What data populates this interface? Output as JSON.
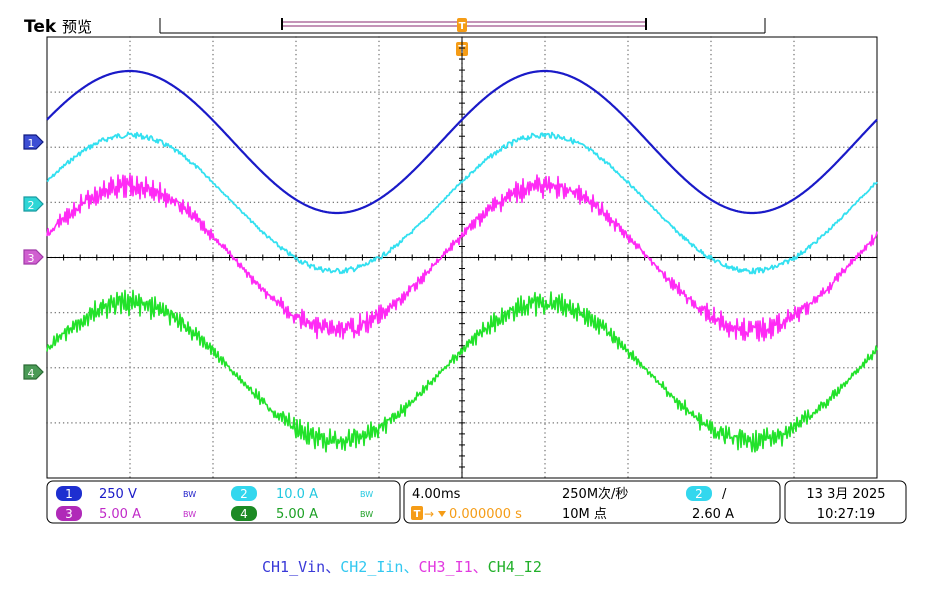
{
  "brand": "Tek",
  "mode": "预览",
  "trigger_marker": "T",
  "channels": [
    {
      "id": "1",
      "label": "1",
      "scale": "250 V",
      "bw": "BW",
      "color": "#1a1ac8",
      "badge": "#1e2fd0"
    },
    {
      "id": "2",
      "label": "2",
      "scale": "10.0 A",
      "bw": "BW",
      "color": "#33e0f0",
      "badge": "#33d7ee"
    },
    {
      "id": "3",
      "label": "3",
      "scale": "5.00 A",
      "bw": "BW",
      "color": "#ff2af5",
      "badge": "#d23ad8"
    },
    {
      "id": "4",
      "label": "4",
      "scale": "5.00 A",
      "bw": "BW",
      "color": "#22e22a",
      "badge": "#22a02a"
    }
  ],
  "horizontal": {
    "timebase": "4.00ms",
    "sample_rate": "250M次/秒",
    "record_length": "10M 点",
    "trigger_position": "0.000000 s"
  },
  "trigger": {
    "source": "2",
    "slope": "/",
    "level": "2.60 A"
  },
  "datetime": {
    "date": "13 3月 2025",
    "time": "10:27:19"
  },
  "caption": [
    {
      "text": "CH1_Vin",
      "color": "#3a3ad8"
    },
    {
      "text": "、",
      "color": "#3a3ad8"
    },
    {
      "text": "CH2_Iin",
      "color": "#33c8f0"
    },
    {
      "text": "、",
      "color": "#33c8f0"
    },
    {
      "text": "CH3_I1",
      "color": "#e23ae0"
    },
    {
      "text": "、",
      "color": "#e23ae0"
    },
    {
      "text": "CH4_I2",
      "color": "#22b02a"
    }
  ]
}
